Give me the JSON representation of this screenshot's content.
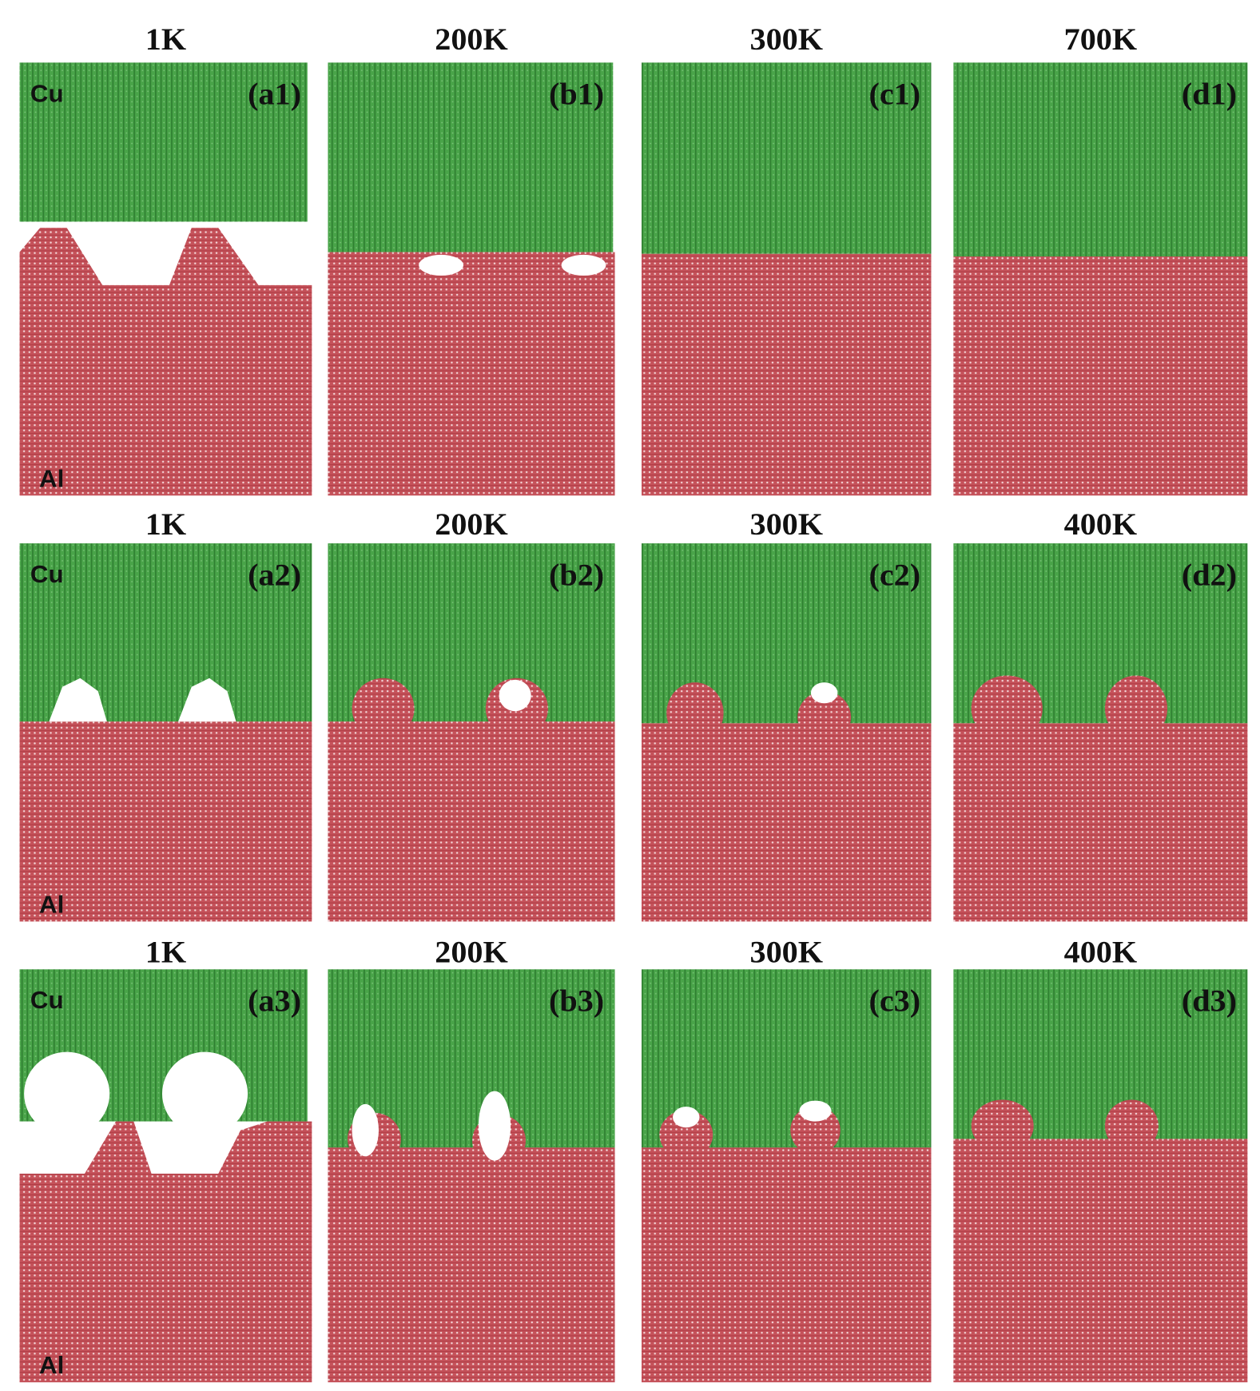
{
  "rows": [
    {
      "panels": [
        {
          "temperature": "1K",
          "label": "(a1)",
          "top_material": "Cu",
          "bottom_material": "Al"
        },
        {
          "temperature": "200K",
          "label": "(b1)"
        },
        {
          "temperature": "300K",
          "label": "(c1)"
        },
        {
          "temperature": "700K",
          "label": "(d1)"
        }
      ]
    },
    {
      "panels": [
        {
          "temperature": "1K",
          "label": "(a2)",
          "top_material": "Cu",
          "bottom_material": "Al"
        },
        {
          "temperature": "200K",
          "label": "(b2)"
        },
        {
          "temperature": "300K",
          "label": "(c2)"
        },
        {
          "temperature": "400K",
          "label": "(d2)"
        }
      ]
    },
    {
      "panels": [
        {
          "temperature": "1K",
          "label": "(a3)",
          "top_material": "Cu",
          "bottom_material": "Al"
        },
        {
          "temperature": "200K",
          "label": "(b3)"
        },
        {
          "temperature": "300K",
          "label": "(c3)"
        },
        {
          "temperature": "400K",
          "label": "(d3)"
        }
      ]
    }
  ]
}
